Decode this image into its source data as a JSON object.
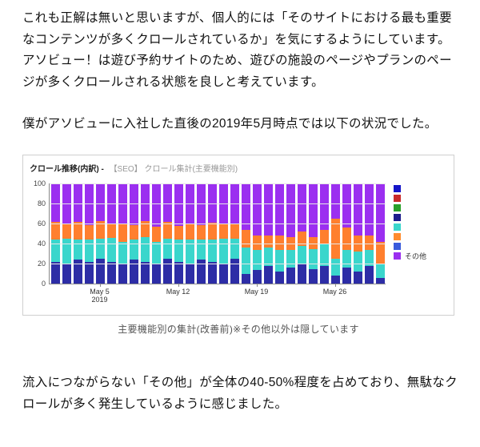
{
  "page": {
    "paragraph1": "これも正解は無いと思いますが、個人的には「そのサイトにおける最も重要なコンテンツが多くクロールされているか」を気にするようにしています。アソビュー！は遊び予約サイトのため、遊びの施設のページやプランのページが多くクロールされる状態を良しと考えています。",
    "paragraph2": "僕がアソビューに入社した直後の2019年5月時点では以下の状況でした。",
    "caption": "主要機能別の集計(改善前)※その他以外は隠しています",
    "paragraph3": "流入につながらない「その他」が全体の40-50%程度を占めており、無駄なクロールが多く発生しているように感じました。"
  },
  "chart_data": {
    "type": "bar",
    "stacked": true,
    "percent_stack": true,
    "title": "クロール推移(内訳) -",
    "subtitle": "【SEO】 クロール集計(主要機能別)",
    "ylim": [
      0,
      100
    ],
    "y_ticks": [
      0,
      20,
      40,
      60,
      80,
      100
    ],
    "grid": true,
    "categories": [
      "May 1",
      "May 2",
      "May 3",
      "May 4",
      "May 5",
      "May 6",
      "May 7",
      "May 8",
      "May 9",
      "May 10",
      "May 11",
      "May 12",
      "May 13",
      "May 14",
      "May 15",
      "May 16",
      "May 17",
      "May 18",
      "May 19",
      "May 20",
      "May 21",
      "May 22",
      "May 23",
      "May 24",
      "May 25",
      "May 26",
      "May 27",
      "May 28",
      "May 29",
      "May 30"
    ],
    "x_ticks": [
      {
        "index": 4,
        "label": "May 5",
        "sub": "2019"
      },
      {
        "index": 11,
        "label": "May 12",
        "sub": ""
      },
      {
        "index": 18,
        "label": "May 19",
        "sub": ""
      },
      {
        "index": 25,
        "label": "May 26",
        "sub": ""
      }
    ],
    "series": [
      {
        "name": "",
        "color": "#2d2da6",
        "values": [
          22,
          20,
          24,
          22,
          25,
          22,
          20,
          24,
          22,
          20,
          25,
          22,
          20,
          24,
          22,
          20,
          25,
          10,
          14,
          18,
          12,
          16,
          20,
          15,
          18,
          8,
          16,
          12,
          18,
          6
        ]
      },
      {
        "name": "",
        "color": "#3ad6cc",
        "values": [
          22,
          25,
          20,
          22,
          20,
          24,
          22,
          20,
          25,
          22,
          20,
          22,
          24,
          20,
          22,
          25,
          20,
          26,
          20,
          18,
          22,
          18,
          18,
          20,
          22,
          17,
          18,
          20,
          16,
          14
        ]
      },
      {
        "name": "",
        "color": "#ff7f2e",
        "values": [
          18,
          15,
          18,
          15,
          18,
          14,
          18,
          15,
          16,
          15,
          17,
          14,
          16,
          15,
          17,
          15,
          15,
          18,
          14,
          12,
          14,
          13,
          14,
          12,
          14,
          40,
          22,
          16,
          14,
          22
        ]
      },
      {
        "name": "その他",
        "color": "#9b2ff0",
        "values": [
          38,
          40,
          38,
          41,
          37,
          40,
          40,
          41,
          37,
          43,
          38,
          42,
          40,
          41,
          39,
          40,
          40,
          46,
          52,
          52,
          52,
          53,
          48,
          53,
          46,
          35,
          44,
          52,
          52,
          58
        ]
      }
    ],
    "legend": {
      "position": "right",
      "items": [
        {
          "color": "#1515c8",
          "label": ""
        },
        {
          "color": "#c82a2a",
          "label": ""
        },
        {
          "color": "#2aa02a",
          "label": ""
        },
        {
          "color": "#1c1c8c",
          "label": ""
        },
        {
          "color": "#3ad6cc",
          "label": ""
        },
        {
          "color": "#ff8c2e",
          "label": ""
        },
        {
          "color": "#3a5bdc",
          "label": ""
        },
        {
          "color": "#9b2ff0",
          "label": "その他"
        }
      ]
    }
  }
}
